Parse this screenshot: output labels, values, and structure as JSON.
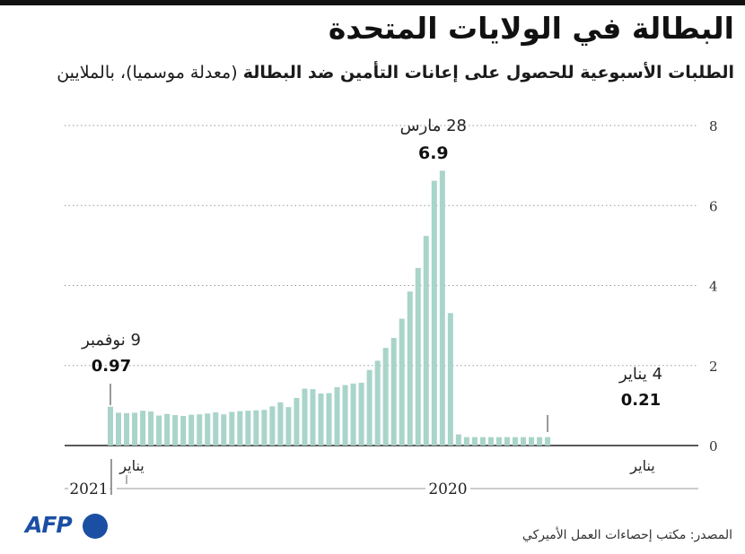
{
  "header": {
    "title": "البطالة في الولايات المتحدة",
    "subtitle_bold": "الطلبات الأسبوعية للحصول على إعانات التأمين ضد البطالة",
    "subtitle_rest": " (معدلة موسميا)، بالملايين"
  },
  "source": "المصدر: مكتب إحصاءات العمل الأميركي",
  "logo": {
    "text": "AFP",
    "color": "#1b4fa3"
  },
  "colors": {
    "bar": "#a9d4c9",
    "grid": "#999999",
    "axis": "#222222"
  },
  "chart_data": {
    "type": "bar",
    "ylim": [
      0,
      8
    ],
    "yticks": [
      0,
      2,
      4,
      6,
      8
    ],
    "grid": "horizontal-dotted",
    "values": [
      0.97,
      0.82,
      0.81,
      0.82,
      0.87,
      0.85,
      0.75,
      0.79,
      0.76,
      0.74,
      0.77,
      0.78,
      0.8,
      0.83,
      0.78,
      0.84,
      0.86,
      0.87,
      0.88,
      0.89,
      0.98,
      1.08,
      0.96,
      1.19,
      1.42,
      1.41,
      1.3,
      1.31,
      1.46,
      1.51,
      1.55,
      1.57,
      1.89,
      2.12,
      2.44,
      2.69,
      3.17,
      3.85,
      4.44,
      5.24,
      6.62,
      6.87,
      3.31,
      0.28,
      0.21,
      0.21,
      0.21,
      0.21,
      0.21,
      0.21,
      0.21,
      0.21,
      0.21,
      0.21,
      0.21
    ],
    "annotations": [
      {
        "label": "9 نوفمبر",
        "value_text": "0.97",
        "index": 0,
        "value": 0.97
      },
      {
        "label": "28 مارس",
        "value_text": "6.9",
        "index": 41,
        "value": 6.9
      },
      {
        "label": "4 يناير",
        "value_text": "0.21",
        "index": 54,
        "value": 0.21
      }
    ],
    "month_labels": [
      {
        "text": "يناير",
        "index": 2
      },
      {
        "text": "يناير",
        "index": 54
      }
    ],
    "year_labels": [
      "2021",
      "2020"
    ]
  }
}
